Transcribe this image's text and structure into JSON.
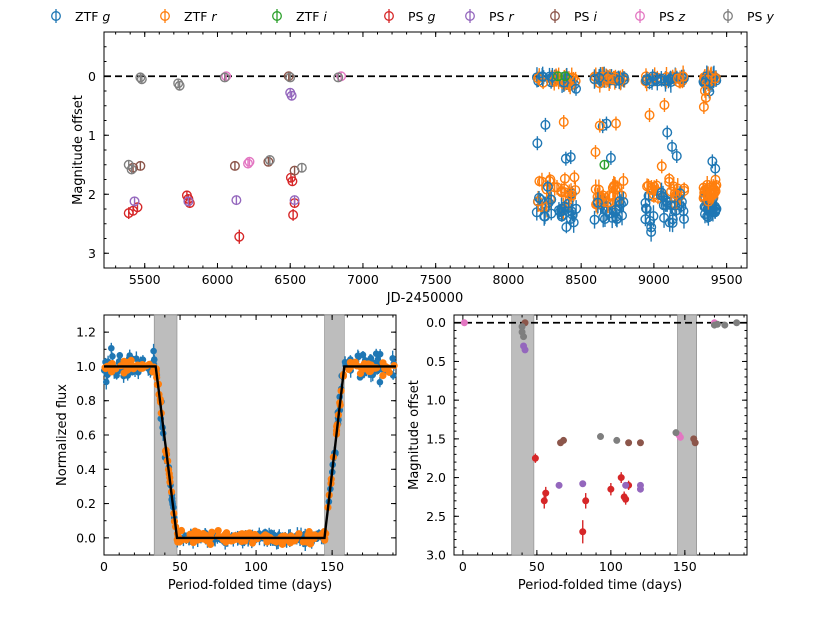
{
  "colors": {
    "ztf_g": "#1f77b4",
    "ztf_r": "#ff7f0e",
    "ztf_i": "#2ca02c",
    "ps_g": "#d62728",
    "ps_r": "#9467bd",
    "ps_i": "#8c564b",
    "ps_z": "#e377c2",
    "ps_y": "#7f7f7f",
    "band": "#bdbdbd",
    "model": "#000000"
  },
  "legend": [
    {
      "prefix": "ZTF ",
      "band": "g",
      "key": "ztf_g"
    },
    {
      "prefix": "ZTF ",
      "band": "r",
      "key": "ztf_r"
    },
    {
      "prefix": "ZTF ",
      "band": "i",
      "key": "ztf_i"
    },
    {
      "prefix": "PS ",
      "band": "g",
      "key": "ps_g"
    },
    {
      "prefix": "PS ",
      "band": "r",
      "key": "ps_r"
    },
    {
      "prefix": "PS ",
      "band": "i",
      "key": "ps_i"
    },
    {
      "prefix": "PS ",
      "band": "z",
      "key": "ps_z"
    },
    {
      "prefix": "PS ",
      "band": "y",
      "key": "ps_y"
    }
  ],
  "chart_data": [
    {
      "id": "top",
      "type": "scatter",
      "title": "",
      "xlabel": "JD-2450000",
      "ylabel": "Magnitude offset",
      "xlim": [
        5220,
        9640
      ],
      "ylim": [
        3.25,
        -0.75
      ],
      "xticks": [
        5500,
        6000,
        6500,
        7000,
        7500,
        8000,
        8500,
        9000,
        9500
      ],
      "yticks": [
        0,
        1,
        2,
        3
      ],
      "reference_line": 0,
      "series": [
        {
          "name": "PS g",
          "key": "ps_g",
          "points": [
            [
              5390,
              2.32,
              0.1
            ],
            [
              5420,
              2.28,
              0.08
            ],
            [
              5450,
              2.22,
              0.07
            ],
            [
              5790,
              2.02,
              0.06
            ],
            [
              5800,
              2.08,
              0.06
            ],
            [
              5810,
              2.15,
              0.06
            ],
            [
              6150,
              2.72,
              0.12
            ],
            [
              6505,
              1.72,
              0.05
            ],
            [
              6515,
              1.78,
              0.05
            ],
            [
              6520,
              2.35,
              0.1
            ],
            [
              6530,
              2.15,
              0.06
            ]
          ]
        },
        {
          "name": "PS r",
          "key": "ps_r",
          "points": [
            [
              5430,
              2.12,
              0.05
            ],
            [
              5800,
              2.12,
              0.05
            ],
            [
              6130,
              2.1,
              0.05
            ],
            [
              6500,
              0.28,
              0.05
            ],
            [
              6510,
              0.33,
              0.05
            ],
            [
              6530,
              2.1,
              0.05
            ]
          ]
        },
        {
          "name": "PS i",
          "key": "ps_i",
          "points": [
            [
              5420,
              1.55,
              0.04
            ],
            [
              5470,
              1.52,
              0.04
            ],
            [
              6120,
              1.52,
              0.04
            ],
            [
              6350,
              1.45,
              0.04
            ],
            [
              6490,
              0.0,
              0.03
            ],
            [
              6530,
              1.6,
              0.04
            ]
          ]
        },
        {
          "name": "PS z",
          "key": "ps_z",
          "points": [
            [
              6060,
              0.0,
              0.03
            ],
            [
              6210,
              1.48,
              0.04
            ],
            [
              6220,
              1.45,
              0.04
            ],
            [
              6850,
              0.0,
              0.03
            ]
          ]
        },
        {
          "name": "PS y",
          "key": "ps_y",
          "points": [
            [
              5390,
              1.5,
              0.05
            ],
            [
              5410,
              1.58,
              0.05
            ],
            [
              5470,
              0.02,
              0.03
            ],
            [
              5480,
              0.05,
              0.03
            ],
            [
              5730,
              0.12,
              0.04
            ],
            [
              5740,
              0.16,
              0.04
            ],
            [
              6050,
              0.02,
              0.03
            ],
            [
              6360,
              1.42,
              0.04
            ],
            [
              6500,
              0.02,
              0.03
            ],
            [
              6580,
              1.55,
              0.05
            ],
            [
              6830,
              0.02,
              0.03
            ]
          ]
        },
        {
          "name": "ZTF i",
          "key": "ztf_i",
          "points": [
            [
              8340,
              0.0,
              0.04
            ],
            [
              8390,
              0.0,
              0.04
            ],
            [
              8660,
              1.5,
              0.05
            ]
          ]
        }
      ],
      "ztf_seasons": [
        {
          "start": 8195,
          "end": 8470
        },
        {
          "start": 8590,
          "end": 8800
        },
        {
          "start": 8940,
          "end": 9210
        },
        {
          "start": 9340,
          "end": 9430
        }
      ],
      "ztf_levels": {
        "bright": 0.0,
        "faint_g": 2.25,
        "faint_r": 1.95
      }
    },
    {
      "id": "bottom_left",
      "type": "scatter",
      "title": "",
      "xlabel": "Period-folded time (days)",
      "ylabel": "Normalized flux",
      "xlim": [
        0,
        192
      ],
      "ylim": [
        -0.1,
        1.3
      ],
      "xticks": [
        0,
        50,
        100,
        150
      ],
      "yticks": [
        0.0,
        0.2,
        0.4,
        0.6,
        0.8,
        1.0,
        1.2
      ],
      "ingress": [
        34,
        48
      ],
      "egress": [
        145,
        158
      ],
      "shaded_bands": [
        [
          33,
          48
        ],
        [
          145,
          158
        ]
      ],
      "series": [
        {
          "name": "ZTF g",
          "key": "ztf_g"
        },
        {
          "name": "ZTF r",
          "key": "ztf_r"
        },
        {
          "name": "Model",
          "key": "model"
        }
      ]
    },
    {
      "id": "bottom_right",
      "type": "scatter",
      "title": "",
      "xlabel": "Period-folded time (days)",
      "ylabel": "Magnitude offset",
      "xlim": [
        -6,
        192
      ],
      "ylim": [
        3.0,
        -0.1
      ],
      "xticks": [
        0,
        50,
        100,
        150
      ],
      "yticks": [
        0.0,
        0.5,
        1.0,
        1.5,
        2.0,
        2.5,
        3.0
      ],
      "reference_line": 0,
      "shaded_bands": [
        [
          33,
          48
        ],
        [
          145,
          158
        ]
      ],
      "series": [
        {
          "name": "PS g",
          "key": "ps_g",
          "points": [
            [
              49,
              1.75,
              0.06
            ],
            [
              55,
              2.3,
              0.1
            ],
            [
              56,
              2.2,
              0.08
            ],
            [
              81,
              2.7,
              0.15
            ],
            [
              83,
              2.3,
              0.1
            ],
            [
              100,
              2.15,
              0.08
            ],
            [
              107,
              2.0,
              0.07
            ],
            [
              109,
              2.25,
              0.07
            ],
            [
              110,
              2.28,
              0.07
            ],
            [
              112,
              2.1,
              0.06
            ]
          ]
        },
        {
          "name": "PS r",
          "key": "ps_r",
          "points": [
            [
              41,
              0.3,
              0.03
            ],
            [
              42,
              0.35,
              0.03
            ],
            [
              65,
              2.1,
              0.03
            ],
            [
              81,
              2.08,
              0.03
            ],
            [
              110,
              2.1,
              0.03
            ],
            [
              120,
              2.1,
              0.03
            ],
            [
              120,
              2.15,
              0.03
            ]
          ]
        },
        {
          "name": "PS i",
          "key": "ps_i",
          "points": [
            [
              42,
              0.0,
              0.02
            ],
            [
              66,
              1.55,
              0.03
            ],
            [
              68,
              1.52,
              0.03
            ],
            [
              112,
              1.55,
              0.03
            ],
            [
              120,
              1.55,
              0.03
            ],
            [
              156,
              1.5,
              0.03
            ],
            [
              157,
              1.55,
              0.03
            ]
          ]
        },
        {
          "name": "PS z",
          "key": "ps_z",
          "points": [
            [
              1,
              0.0,
              0.02
            ],
            [
              146,
              1.45,
              0.03
            ],
            [
              147,
              1.48,
              0.03
            ],
            [
              170,
              0.0,
              0.02
            ]
          ]
        },
        {
          "name": "PS y",
          "key": "ps_y",
          "points": [
            [
              40,
              0.05,
              0.02
            ],
            [
              40,
              0.12,
              0.02
            ],
            [
              41,
              0.18,
              0.02
            ],
            [
              93,
              1.47,
              0.03
            ],
            [
              104,
              1.52,
              0.03
            ],
            [
              144,
              1.42,
              0.03
            ],
            [
              170,
              0.03,
              0.02
            ],
            [
              172,
              0.02,
              0.02
            ],
            [
              177,
              0.03,
              0.02
            ],
            [
              185,
              0.0,
              0.02
            ]
          ]
        }
      ]
    }
  ]
}
